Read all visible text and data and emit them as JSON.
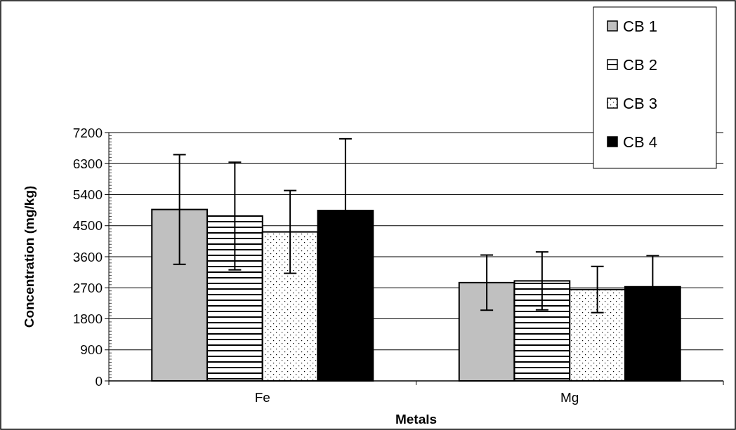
{
  "chart_data": {
    "type": "bar",
    "xlabel": "Metals",
    "ylabel": "Concentration (mg/kg)",
    "categories": [
      "Fe",
      "Mg"
    ],
    "series": [
      {
        "name": "CB 1",
        "color": "#c0c0c0",
        "values": [
          4970,
          2850
        ],
        "errors": [
          1590,
          800
        ]
      },
      {
        "name": "CB 2",
        "color": "#000000",
        "values": [
          4780,
          2900
        ],
        "errors": [
          1560,
          840
        ]
      },
      {
        "name": "CB 3",
        "color": "#000000",
        "values": [
          4320,
          2650
        ],
        "errors": [
          1200,
          670
        ]
      },
      {
        "name": "CB 4",
        "color": "#000000",
        "values": [
          4940,
          2730
        ],
        "errors": [
          2080,
          900
        ]
      }
    ],
    "ylim": [
      0,
      7200
    ],
    "yticks": [
      0,
      900,
      1800,
      2700,
      3600,
      4500,
      5400,
      6300,
      7200
    ],
    "grid": "y",
    "legend": "top right"
  }
}
